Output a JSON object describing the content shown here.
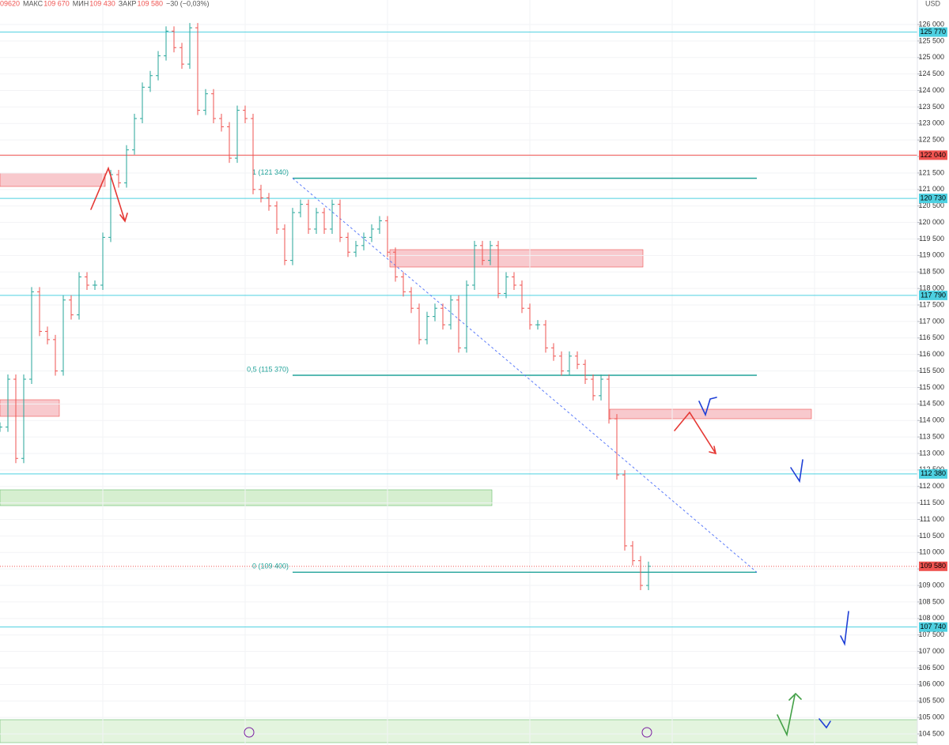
{
  "currency": "USD",
  "header": [
    "09620",
    "МАКС",
    "109 670",
    "МИН",
    "109 430",
    "ЗАКР",
    "109 580",
    "−30 (−0,03%)"
  ],
  "chart_data": {
    "type": "bar-series",
    "values": [
      113800,
      115250,
      112850,
      115250,
      117900,
      116700,
      116450,
      115500,
      117650,
      117200,
      118350,
      118100,
      118100,
      119550,
      121450,
      121200,
      122200,
      123150,
      124100,
      124450,
      125050,
      125800,
      125300,
      124800,
      125900,
      123400,
      123900,
      123150,
      122900,
      121950,
      123400,
      123150,
      121000,
      120750,
      120500,
      119800,
      118850,
      120300,
      120550,
      119800,
      120300,
      119800,
      120550,
      119550,
      119100,
      119300,
      119550,
      119800,
      120050,
      119100,
      118350,
      117900,
      117400,
      116450,
      117150,
      117400,
      116900,
      117650,
      116200,
      118100,
      119300,
      118850,
      119300,
      117850,
      118350,
      118100,
      117400,
      116900,
      116900,
      116200,
      115950,
      115500,
      115950,
      115700,
      115250,
      114750,
      115250,
      114050,
      112350,
      110200,
      109750,
      109000,
      109580
    ],
    "up_color": "#26a69a",
    "down_color": "#ef5350",
    "grid": true,
    "ylim": [
      104500,
      126000
    ],
    "yticks": [
      {
        "value": 104500,
        "label": "104 500"
      },
      {
        "value": 105000,
        "label": "105 000"
      },
      {
        "value": 105500,
        "label": "105 500"
      },
      {
        "value": 106000,
        "label": "106 000"
      },
      {
        "value": 106500,
        "label": "106 500"
      },
      {
        "value": 107000,
        "label": "107 000"
      },
      {
        "value": 107500,
        "label": "107 500"
      },
      {
        "value": 108000,
        "label": "108 000"
      },
      {
        "value": 108500,
        "label": "108 500"
      },
      {
        "value": 109000,
        "label": "109 000"
      },
      {
        "value": 109500,
        "label": "109 500"
      },
      {
        "value": 110000,
        "label": "110 000"
      },
      {
        "value": 110500,
        "label": "110 500"
      },
      {
        "value": 111000,
        "label": "111 000"
      },
      {
        "value": 111500,
        "label": "111 500"
      },
      {
        "value": 112000,
        "label": "112 000"
      },
      {
        "value": 112500,
        "label": "112 500"
      },
      {
        "value": 113000,
        "label": "113 000"
      },
      {
        "value": 113500,
        "label": "113 500"
      },
      {
        "value": 114000,
        "label": "114 000"
      },
      {
        "value": 114500,
        "label": "114 500"
      },
      {
        "value": 115000,
        "label": "115 000"
      },
      {
        "value": 115500,
        "label": "115 500"
      },
      {
        "value": 116000,
        "label": "116 000"
      },
      {
        "value": 116500,
        "label": "116 500"
      },
      {
        "value": 117000,
        "label": "117 000"
      },
      {
        "value": 117500,
        "label": "117 500"
      },
      {
        "value": 118000,
        "label": "118 000"
      },
      {
        "value": 118500,
        "label": "118 500"
      },
      {
        "value": 119000,
        "label": "119 000"
      },
      {
        "value": 119500,
        "label": "119 500"
      },
      {
        "value": 120000,
        "label": "120 000"
      },
      {
        "value": 120500,
        "label": "120 500"
      },
      {
        "value": 121000,
        "label": "121 000"
      },
      {
        "value": 121500,
        "label": "121 500"
      },
      {
        "value": 122000,
        "label": "122 000"
      },
      {
        "value": 122500,
        "label": "122 500"
      },
      {
        "value": 123000,
        "label": "123 000"
      },
      {
        "value": 123500,
        "label": "123 500"
      },
      {
        "value": 124000,
        "label": "124 000"
      },
      {
        "value": 124500,
        "label": "124 500"
      },
      {
        "value": 125000,
        "label": "125 000"
      },
      {
        "value": 125500,
        "label": "125 500"
      },
      {
        "value": 126000,
        "label": "126 000"
      }
    ],
    "levels": [
      {
        "value": 125770,
        "label": "125 770",
        "color": "#4dd0e1"
      },
      {
        "value": 122040,
        "label": "122 040",
        "color": "#ef5350"
      },
      {
        "value": 120730,
        "label": "120 730",
        "color": "#4dd0e1"
      },
      {
        "value": 117790,
        "label": "117 790",
        "color": "#4dd0e1"
      },
      {
        "value": 112380,
        "label": "112 380",
        "color": "#4dd0e1"
      },
      {
        "value": 109580,
        "label": "109 580",
        "color": "#ef5350",
        "dotted": true
      },
      {
        "value": 107740,
        "label": "107 740",
        "color": "#4dd0e1"
      }
    ],
    "fib": [
      {
        "value": 121340,
        "label": "1 (121 340)"
      },
      {
        "value": 115370,
        "label": "0,5 (115 370)"
      },
      {
        "value": 109400,
        "label": "0 (109 400)"
      }
    ],
    "fib_color": "#22a39a"
  }
}
